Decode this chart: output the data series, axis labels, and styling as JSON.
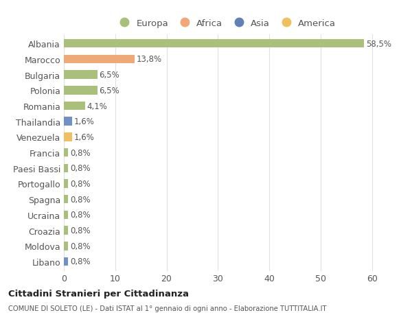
{
  "categories": [
    "Albania",
    "Marocco",
    "Bulgaria",
    "Polonia",
    "Romania",
    "Thailandia",
    "Venezuela",
    "Francia",
    "Paesi Bassi",
    "Portogallo",
    "Spagna",
    "Ucraina",
    "Croazia",
    "Moldova",
    "Libano"
  ],
  "values": [
    58.5,
    13.8,
    6.5,
    6.5,
    4.1,
    1.6,
    1.6,
    0.8,
    0.8,
    0.8,
    0.8,
    0.8,
    0.8,
    0.8,
    0.8
  ],
  "labels": [
    "58,5%",
    "13,8%",
    "6,5%",
    "6,5%",
    "4,1%",
    "1,6%",
    "1,6%",
    "0,8%",
    "0,8%",
    "0,8%",
    "0,8%",
    "0,8%",
    "0,8%",
    "0,8%",
    "0,8%"
  ],
  "colors": [
    "#a8c07a",
    "#f0a878",
    "#a8c07a",
    "#a8c07a",
    "#a8c07a",
    "#7090c8",
    "#f0c060",
    "#a8c07a",
    "#a8c07a",
    "#a8c07a",
    "#a8c07a",
    "#a8c07a",
    "#a8c07a",
    "#a8c07a",
    "#7090c8"
  ],
  "legend": [
    {
      "label": "Europa",
      "color": "#a8c07a"
    },
    {
      "label": "Africa",
      "color": "#f0a878"
    },
    {
      "label": "Asia",
      "color": "#6080b8"
    },
    {
      "label": "America",
      "color": "#f0c060"
    }
  ],
  "xlim": [
    0,
    63
  ],
  "xticks": [
    0,
    10,
    20,
    30,
    40,
    50,
    60
  ],
  "title": "Cittadini Stranieri per Cittadinanza",
  "subtitle": "COMUNE DI SOLETO (LE) - Dati ISTAT al 1° gennaio di ogni anno - Elaborazione TUTTITALIA.IT",
  "background_color": "#ffffff",
  "grid_color": "#e0e0e0",
  "bar_height": 0.55,
  "label_fontsize": 8.5,
  "ytick_fontsize": 9,
  "xtick_fontsize": 9
}
